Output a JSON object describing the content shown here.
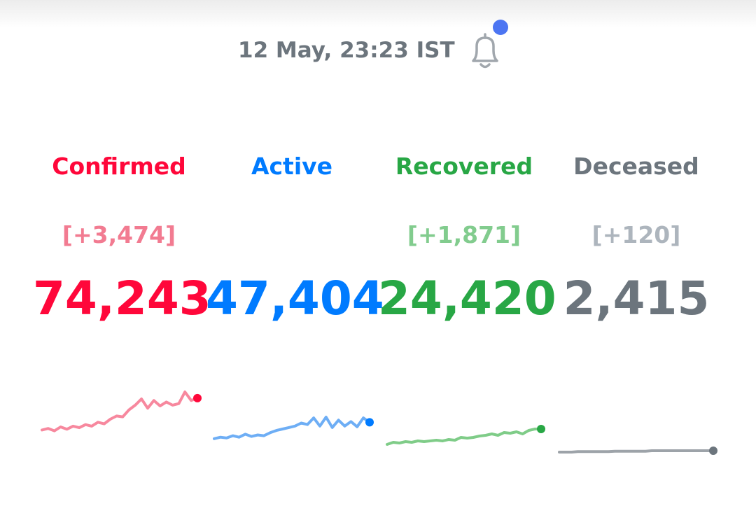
{
  "header": {
    "timestamp": "12 May, 23:23 IST",
    "bell_icon": "bell-icon",
    "notification_dot": true
  },
  "stats": [
    {
      "id": "confirmed",
      "label": "Confirmed",
      "delta": "[+3,474]",
      "value": "74,243",
      "color": "#ff073a",
      "delta_color": "#f27b91",
      "spark_color": "#f7889e",
      "trend": [
        5,
        7,
        4,
        9,
        6,
        10,
        8,
        12,
        10,
        15,
        13,
        19,
        23,
        22,
        31,
        37,
        45,
        33,
        43,
        36,
        41,
        37,
        39,
        54,
        43,
        46
      ]
    },
    {
      "id": "active",
      "label": "Active",
      "delta": "",
      "value": "47,404",
      "color": "#007bff",
      "delta_color": "#7fb9ff",
      "spark_color": "#6eaef5",
      "trend": [
        3,
        5,
        4,
        7,
        5,
        9,
        6,
        8,
        7,
        11,
        14,
        16,
        18,
        20,
        24,
        22,
        31,
        20,
        32,
        18,
        28,
        20,
        26,
        19,
        31,
        25
      ]
    },
    {
      "id": "recovered",
      "label": "Recovered",
      "delta": "[+1,871]",
      "value": "24,420",
      "color": "#28a745",
      "delta_color": "#82cc8e",
      "spark_color": "#7fcc88",
      "trend": [
        2,
        5,
        4,
        6,
        5,
        7,
        6,
        7,
        8,
        7,
        9,
        8,
        12,
        11,
        12,
        14,
        15,
        17,
        15,
        19,
        18,
        20,
        17,
        22,
        24,
        24
      ]
    },
    {
      "id": "deceased",
      "label": "Deceased",
      "delta": "[+120]",
      "value": "2,415",
      "color": "#6c757d",
      "delta_color": "#adb5bd",
      "spark_color": "#9da3a9",
      "trend": [
        0,
        0,
        0,
        1,
        1,
        1,
        1,
        1,
        1,
        2,
        2,
        2,
        2,
        2,
        2,
        3,
        3,
        3,
        3,
        3,
        3,
        3,
        3,
        3,
        3,
        3
      ]
    }
  ]
}
